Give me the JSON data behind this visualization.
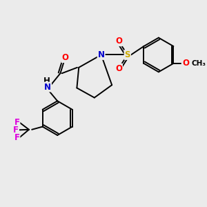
{
  "bg_color": "#ebebeb",
  "atom_colors": {
    "N": "#0000cc",
    "O": "#ff0000",
    "F": "#dd00dd",
    "S": "#ccaa00",
    "C": "#000000",
    "H": "#000000"
  },
  "bond_lw": 1.4,
  "font_size": 8.5
}
